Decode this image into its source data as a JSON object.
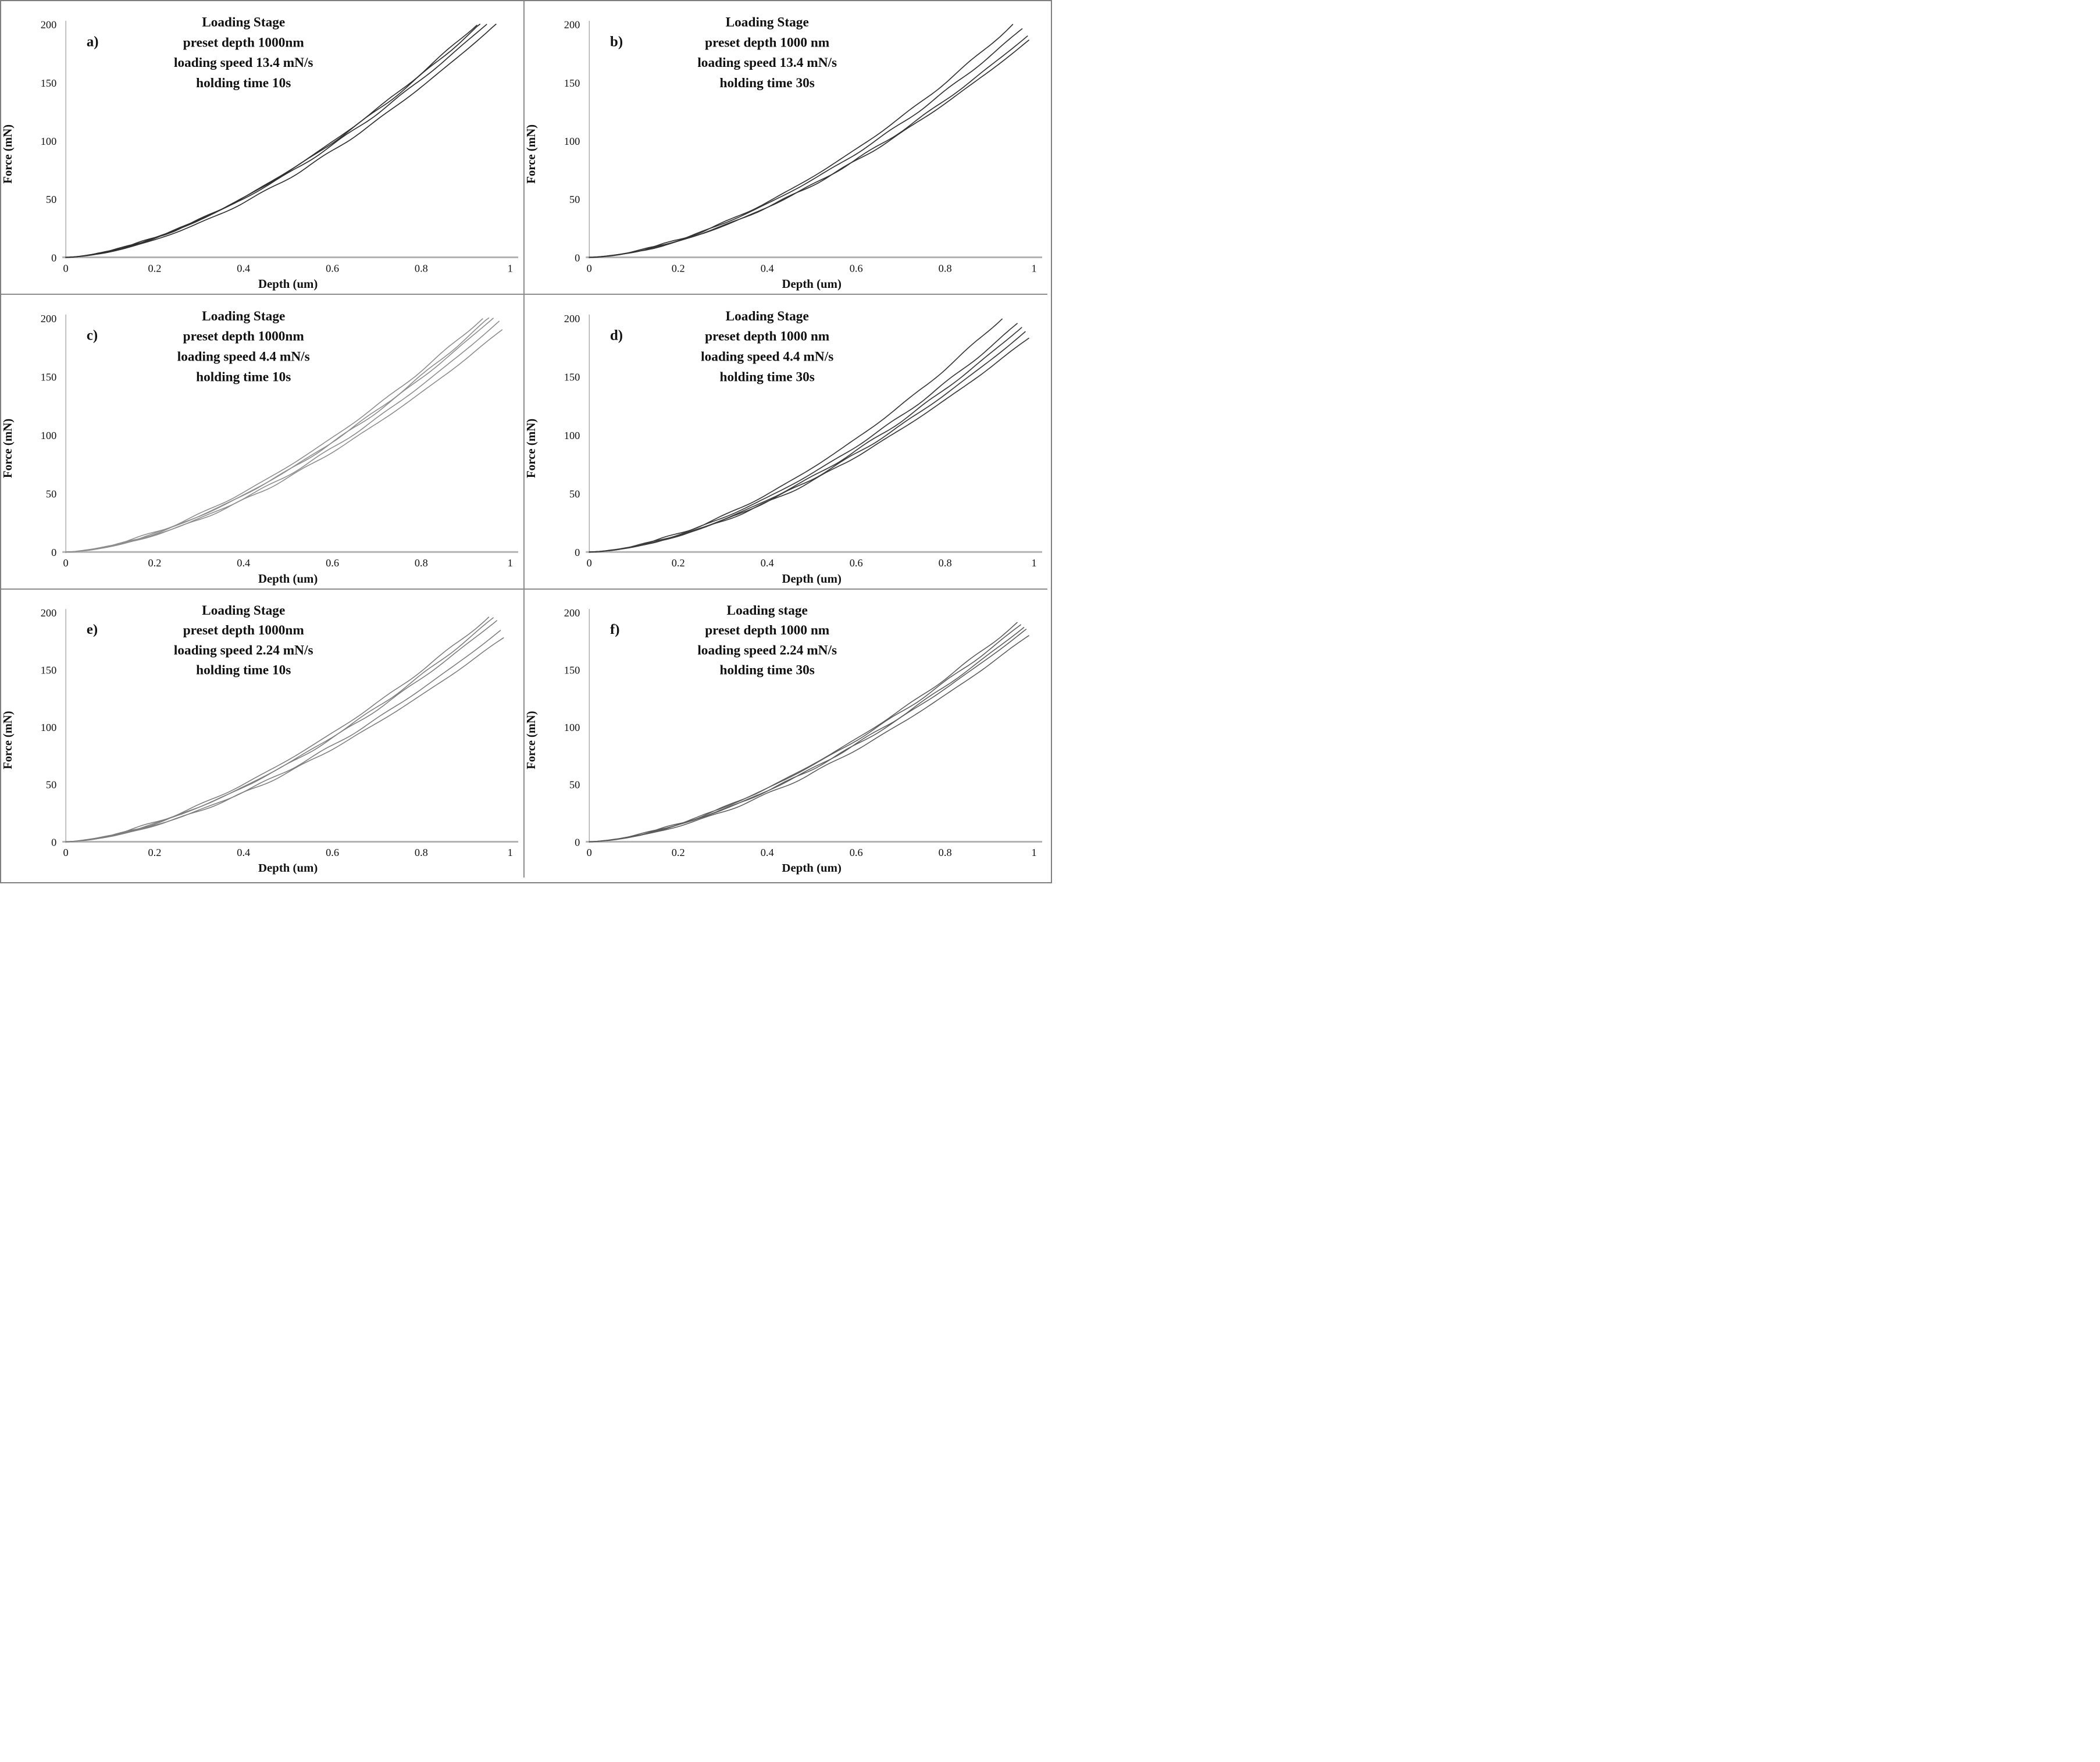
{
  "figure": {
    "background": "#ffffff",
    "outer_border_color": "#7f7f7f",
    "divider_color": "#8c8c8c",
    "layout": "2 columns x 3 rows of force-depth loading curves"
  },
  "chart_data": [
    {
      "id": "a",
      "type": "line",
      "label": "a)",
      "title_lines": [
        "Loading Stage",
        "preset depth 1000nm",
        "loading speed 13.4 mN/s",
        "holding time 10s"
      ],
      "xlabel": "Depth (um)",
      "ylabel": "Force (mN)",
      "xlim": [
        0,
        1
      ],
      "ylim": [
        0,
        200
      ],
      "x_tick_labels": [
        "0",
        "0.2",
        "0.4",
        "0.6",
        "0.8",
        "1"
      ],
      "y_tick_labels": [
        "200",
        "150",
        "100",
        "50",
        "0"
      ],
      "grid": "off",
      "legend": "none",
      "line_color": "#2f2f2f",
      "line_width": 1.7,
      "curves": [
        {
          "x_end": 0.925,
          "y_end": 200,
          "power": 1.62
        },
        {
          "x_end": 0.932,
          "y_end": 200,
          "power": 1.61
        },
        {
          "x_end": 0.947,
          "y_end": 200,
          "power": 1.6
        },
        {
          "x_end": 0.968,
          "y_end": 200,
          "power": 1.64
        }
      ],
      "approx_force_at_depth": {
        "depth_um": [
          0,
          0.2,
          0.4,
          0.6,
          0.8
        ],
        "force_mN": [
          0,
          15,
          52,
          103,
          158
        ]
      }
    },
    {
      "id": "b",
      "type": "line",
      "label": "b)",
      "title_lines": [
        "Loading Stage",
        "preset depth 1000 nm",
        "loading speed 13.4 mN/s",
        "holding time 30s"
      ],
      "xlabel": "Depth (um)",
      "ylabel": "Force (mN)",
      "xlim": [
        0,
        1
      ],
      "ylim": [
        0,
        200
      ],
      "x_tick_labels": [
        "0",
        "0.2",
        "0.4",
        "0.6",
        "0.8",
        "1"
      ],
      "y_tick_labels": [
        "200",
        "150",
        "100",
        "50",
        "0"
      ],
      "grid": "off",
      "legend": "none",
      "line_color": "#333333",
      "line_width": 1.7,
      "curves": [
        {
          "x_end": 0.952,
          "y_end": 200,
          "power": 1.66
        },
        {
          "x_end": 0.973,
          "y_end": 196,
          "power": 1.63
        },
        {
          "x_end": 0.985,
          "y_end": 190,
          "power": 1.65
        },
        {
          "x_end": 0.988,
          "y_end": 186,
          "power": 1.62
        }
      ],
      "approx_force_at_depth": {
        "depth_um": [
          0,
          0.2,
          0.4,
          0.6,
          0.8
        ],
        "force_mN": [
          0,
          14,
          50,
          100,
          155
        ]
      }
    },
    {
      "id": "c",
      "type": "line",
      "label": "c)",
      "title_lines": [
        "Loading Stage",
        "preset depth 1000nm",
        "loading speed 4.4 mN/s",
        "holding time 10s"
      ],
      "xlabel": "Depth  (um)",
      "ylabel": "Force (mN)",
      "xlim": [
        0,
        1
      ],
      "ylim": [
        0,
        200
      ],
      "x_tick_labels": [
        "0",
        "0.2",
        "0.4",
        "0.6",
        "0.8",
        "1"
      ],
      "y_tick_labels": [
        "200",
        "150",
        "100",
        "50",
        "0"
      ],
      "grid": "off",
      "legend": "none",
      "line_color": "#8d8d8d",
      "line_width": 1.6,
      "curves": [
        {
          "x_end": 0.938,
          "y_end": 200,
          "power": 1.6
        },
        {
          "x_end": 0.952,
          "y_end": 200,
          "power": 1.63
        },
        {
          "x_end": 0.962,
          "y_end": 200,
          "power": 1.61
        },
        {
          "x_end": 0.975,
          "y_end": 197,
          "power": 1.64
        },
        {
          "x_end": 0.982,
          "y_end": 190,
          "power": 1.62
        }
      ],
      "approx_force_at_depth": {
        "depth_um": [
          0,
          0.2,
          0.4,
          0.6,
          0.8
        ],
        "force_mN": [
          0,
          16,
          53,
          104,
          158
        ]
      }
    },
    {
      "id": "d",
      "type": "line",
      "label": "d)",
      "title_lines": [
        "Loading Stage",
        "preset depth 1000 nm",
        "loading speed 4.4 mN/s",
        "holding time 30s"
      ],
      "xlabel": "Depth (um)",
      "ylabel": "Force (mN)",
      "xlim": [
        0,
        1
      ],
      "ylim": [
        0,
        200
      ],
      "x_tick_labels": [
        "0",
        "0.2",
        "0.4",
        "0.6",
        "0.8",
        "1"
      ],
      "y_tick_labels": [
        "200",
        "150",
        "100",
        "50",
        "0"
      ],
      "grid": "off",
      "legend": "none",
      "line_color": "#3a3a3a",
      "line_width": 1.7,
      "curves": [
        {
          "x_end": 0.928,
          "y_end": 200,
          "power": 1.66
        },
        {
          "x_end": 0.962,
          "y_end": 195,
          "power": 1.63
        },
        {
          "x_end": 0.972,
          "y_end": 192,
          "power": 1.65
        },
        {
          "x_end": 0.98,
          "y_end": 188,
          "power": 1.64
        },
        {
          "x_end": 0.988,
          "y_end": 183,
          "power": 1.62
        }
      ],
      "approx_force_at_depth": {
        "depth_um": [
          0,
          0.2,
          0.4,
          0.6,
          0.8
        ],
        "force_mN": [
          0,
          15,
          51,
          102,
          156
        ]
      }
    },
    {
      "id": "e",
      "type": "line",
      "label": "e)",
      "title_lines": [
        "Loading Stage",
        "preset depth 1000nm",
        "loading speed 2.24 mN/s",
        "holding time 10s"
      ],
      "xlabel": "Depth (um)",
      "ylabel": "Force (mN)",
      "xlim": [
        0,
        1
      ],
      "ylim": [
        0,
        200
      ],
      "x_tick_labels": [
        "0",
        "0.2",
        "0.4",
        "0.6",
        "0.8",
        "1"
      ],
      "y_tick_labels": [
        "200",
        "150",
        "100",
        "50",
        "0"
      ],
      "grid": "off",
      "legend": "none",
      "line_color": "#7d7d7d",
      "line_width": 1.6,
      "curves": [
        {
          "x_end": 0.952,
          "y_end": 196,
          "power": 1.57
        },
        {
          "x_end": 0.962,
          "y_end": 195,
          "power": 1.6
        },
        {
          "x_end": 0.97,
          "y_end": 193,
          "power": 1.58
        },
        {
          "x_end": 0.978,
          "y_end": 184,
          "power": 1.61
        },
        {
          "x_end": 0.985,
          "y_end": 178,
          "power": 1.59
        }
      ],
      "approx_force_at_depth": {
        "depth_um": [
          0,
          0.2,
          0.4,
          0.6,
          0.8
        ],
        "force_mN": [
          0,
          17,
          55,
          106,
          158
        ]
      }
    },
    {
      "id": "f",
      "type": "line",
      "label": "f)",
      "title_lines": [
        "Loading stage",
        "preset depth 1000 nm",
        "loading speed 2.24 mN/s",
        "holding time 30s"
      ],
      "xlabel": "Depth (um)",
      "ylabel": "Force  (mN)",
      "xlim": [
        0,
        1
      ],
      "ylim": [
        0,
        200
      ],
      "x_tick_labels": [
        "0",
        "0.2",
        "0.4",
        "0.6",
        "0.8",
        "1"
      ],
      "y_tick_labels": [
        "200",
        "150",
        "100",
        "50",
        "0"
      ],
      "grid": "off",
      "legend": "none",
      "line_color": "#5b5b5b",
      "line_width": 1.6,
      "curves": [
        {
          "x_end": 0.962,
          "y_end": 191,
          "power": 1.6
        },
        {
          "x_end": 0.97,
          "y_end": 189,
          "power": 1.58
        },
        {
          "x_end": 0.977,
          "y_end": 187,
          "power": 1.61
        },
        {
          "x_end": 0.982,
          "y_end": 185,
          "power": 1.59
        },
        {
          "x_end": 0.988,
          "y_end": 180,
          "power": 1.62
        }
      ],
      "approx_force_at_depth": {
        "depth_um": [
          0,
          0.2,
          0.4,
          0.6,
          0.8
        ],
        "force_mN": [
          0,
          16,
          54,
          105,
          157
        ]
      }
    }
  ]
}
